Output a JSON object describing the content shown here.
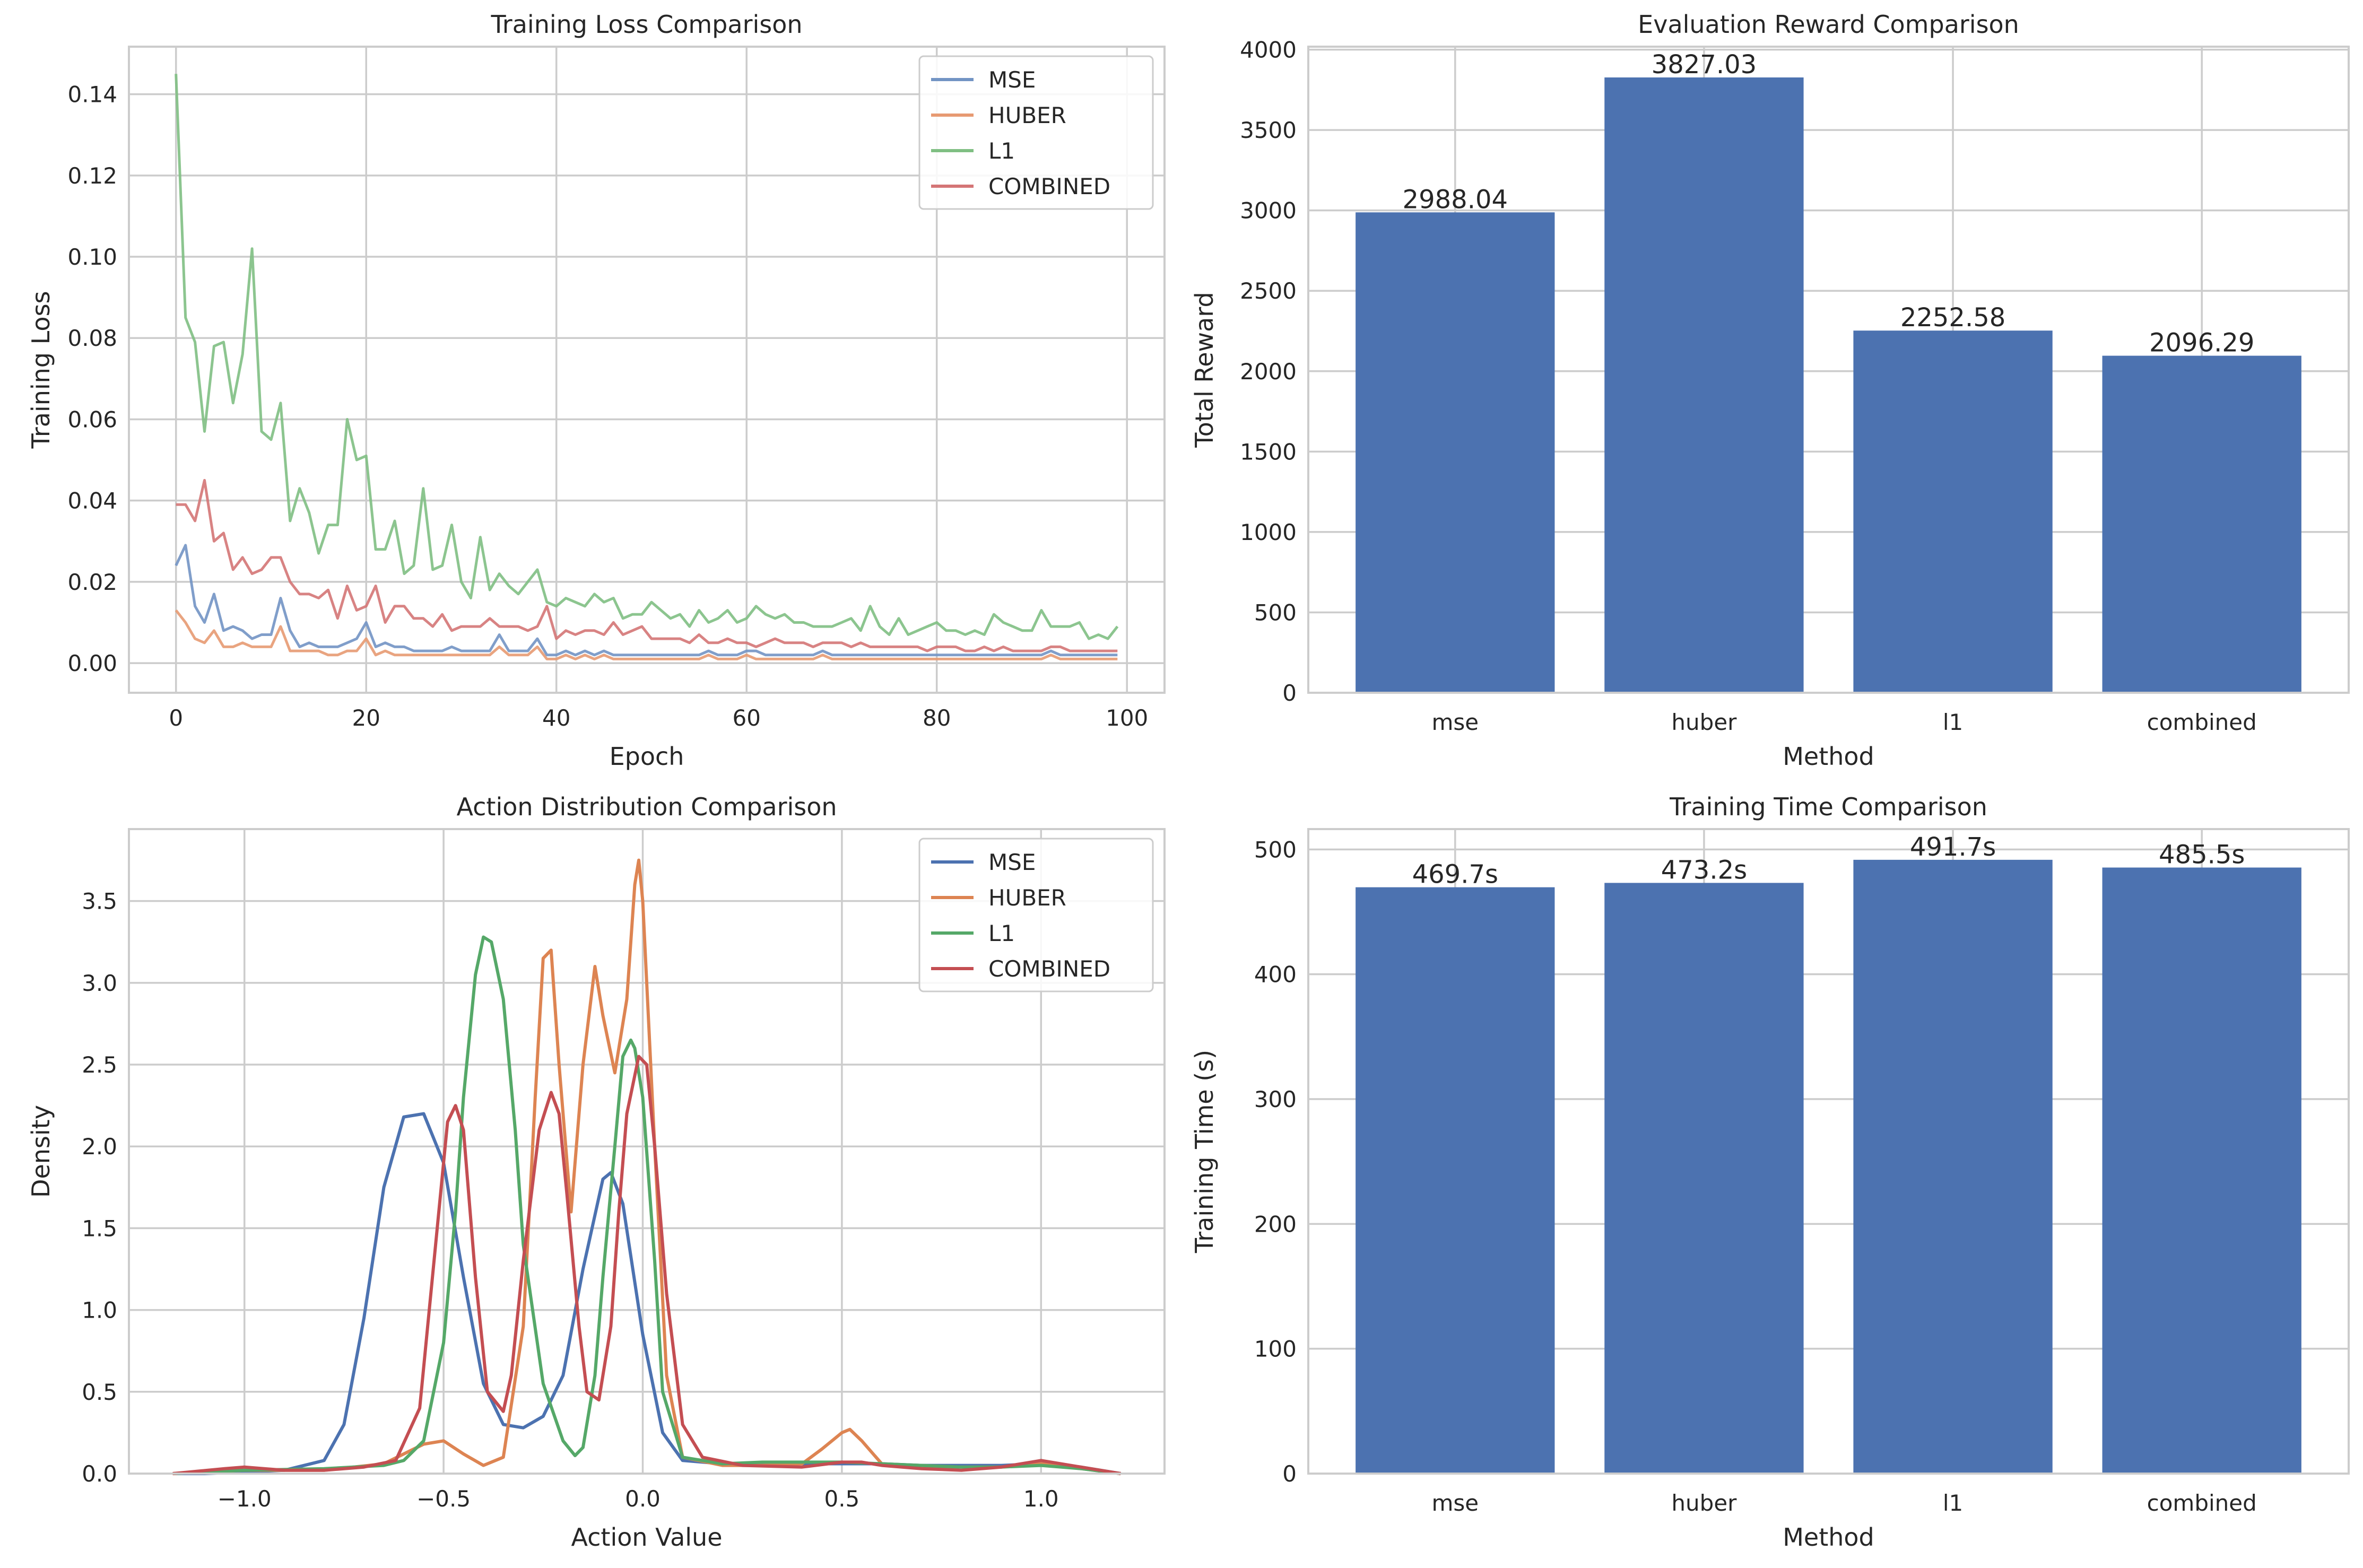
{
  "chart_data": [
    {
      "type": "line",
      "title": "Training Loss Comparison",
      "xlabel": "Epoch",
      "ylabel": "Training Loss",
      "xlim": [
        -4.95,
        103.95
      ],
      "ylim": [
        -0.0073,
        0.1517
      ],
      "xticks": [
        0,
        20,
        40,
        60,
        80,
        100
      ],
      "yticks": [
        0.0,
        0.02,
        0.04,
        0.06,
        0.08,
        0.1,
        0.12,
        0.14
      ],
      "ytick_labels": [
        "0.00",
        "0.02",
        "0.04",
        "0.06",
        "0.08",
        "0.10",
        "0.12",
        "0.14"
      ],
      "legend_position": "top-right",
      "series": [
        {
          "name": "MSE",
          "color": "#7294c4",
          "values": [
            0.024,
            0.029,
            0.014,
            0.01,
            0.017,
            0.008,
            0.009,
            0.008,
            0.006,
            0.007,
            0.007,
            0.016,
            0.008,
            0.004,
            0.005,
            0.004,
            0.004,
            0.004,
            0.005,
            0.006,
            0.01,
            0.004,
            0.005,
            0.004,
            0.004,
            0.003,
            0.003,
            0.003,
            0.003,
            0.004,
            0.003,
            0.003,
            0.003,
            0.003,
            0.007,
            0.003,
            0.003,
            0.003,
            0.006,
            0.002,
            0.002,
            0.003,
            0.002,
            0.003,
            0.002,
            0.003,
            0.002,
            0.002,
            0.002,
            0.002,
            0.002,
            0.002,
            0.002,
            0.002,
            0.002,
            0.002,
            0.003,
            0.002,
            0.002,
            0.002,
            0.003,
            0.003,
            0.002,
            0.002,
            0.002,
            0.002,
            0.002,
            0.002,
            0.003,
            0.002,
            0.002,
            0.002,
            0.002,
            0.002,
            0.002,
            0.002,
            0.002,
            0.002,
            0.002,
            0.002,
            0.002,
            0.002,
            0.002,
            0.002,
            0.002,
            0.002,
            0.002,
            0.002,
            0.002,
            0.002,
            0.002,
            0.002,
            0.003,
            0.002,
            0.002,
            0.002,
            0.002,
            0.002,
            0.002,
            0.002
          ]
        },
        {
          "name": "HUBER",
          "color": "#e79a72",
          "values": [
            0.013,
            0.01,
            0.006,
            0.005,
            0.008,
            0.004,
            0.004,
            0.005,
            0.004,
            0.004,
            0.004,
            0.009,
            0.003,
            0.003,
            0.003,
            0.003,
            0.002,
            0.002,
            0.003,
            0.003,
            0.006,
            0.002,
            0.003,
            0.002,
            0.002,
            0.002,
            0.002,
            0.002,
            0.002,
            0.002,
            0.002,
            0.002,
            0.002,
            0.002,
            0.004,
            0.002,
            0.002,
            0.002,
            0.004,
            0.001,
            0.001,
            0.002,
            0.001,
            0.002,
            0.001,
            0.002,
            0.001,
            0.001,
            0.001,
            0.001,
            0.001,
            0.001,
            0.001,
            0.001,
            0.001,
            0.001,
            0.002,
            0.001,
            0.001,
            0.001,
            0.002,
            0.001,
            0.001,
            0.001,
            0.001,
            0.001,
            0.001,
            0.001,
            0.002,
            0.001,
            0.001,
            0.001,
            0.001,
            0.001,
            0.001,
            0.001,
            0.001,
            0.001,
            0.001,
            0.001,
            0.001,
            0.001,
            0.001,
            0.001,
            0.001,
            0.001,
            0.001,
            0.001,
            0.001,
            0.001,
            0.001,
            0.001,
            0.002,
            0.001,
            0.001,
            0.001,
            0.001,
            0.001,
            0.001,
            0.001
          ]
        },
        {
          "name": "L1",
          "color": "#7fbf83",
          "values": [
            0.145,
            0.085,
            0.079,
            0.057,
            0.078,
            0.079,
            0.064,
            0.076,
            0.102,
            0.057,
            0.055,
            0.064,
            0.035,
            0.043,
            0.037,
            0.027,
            0.034,
            0.034,
            0.06,
            0.05,
            0.051,
            0.028,
            0.028,
            0.035,
            0.022,
            0.024,
            0.043,
            0.023,
            0.024,
            0.034,
            0.02,
            0.016,
            0.031,
            0.018,
            0.022,
            0.019,
            0.017,
            0.02,
            0.023,
            0.015,
            0.014,
            0.016,
            0.015,
            0.014,
            0.017,
            0.015,
            0.016,
            0.011,
            0.012,
            0.012,
            0.015,
            0.013,
            0.011,
            0.012,
            0.009,
            0.013,
            0.01,
            0.011,
            0.013,
            0.01,
            0.011,
            0.014,
            0.012,
            0.011,
            0.012,
            0.01,
            0.01,
            0.009,
            0.009,
            0.009,
            0.01,
            0.011,
            0.008,
            0.014,
            0.009,
            0.007,
            0.011,
            0.007,
            0.008,
            0.009,
            0.01,
            0.008,
            0.008,
            0.007,
            0.008,
            0.007,
            0.012,
            0.01,
            0.009,
            0.008,
            0.008,
            0.013,
            0.009,
            0.009,
            0.009,
            0.01,
            0.006,
            0.007,
            0.006,
            0.009
          ]
        },
        {
          "name": "COMBINED",
          "color": "#d47576",
          "values": [
            0.039,
            0.039,
            0.035,
            0.045,
            0.03,
            0.032,
            0.023,
            0.026,
            0.022,
            0.023,
            0.026,
            0.026,
            0.02,
            0.017,
            0.017,
            0.016,
            0.018,
            0.011,
            0.019,
            0.013,
            0.014,
            0.019,
            0.01,
            0.014,
            0.014,
            0.011,
            0.011,
            0.009,
            0.012,
            0.008,
            0.009,
            0.009,
            0.009,
            0.011,
            0.009,
            0.009,
            0.009,
            0.008,
            0.009,
            0.014,
            0.006,
            0.008,
            0.007,
            0.008,
            0.008,
            0.007,
            0.01,
            0.007,
            0.008,
            0.009,
            0.006,
            0.006,
            0.006,
            0.006,
            0.005,
            0.007,
            0.005,
            0.005,
            0.006,
            0.005,
            0.005,
            0.004,
            0.005,
            0.006,
            0.005,
            0.005,
            0.005,
            0.004,
            0.005,
            0.005,
            0.005,
            0.004,
            0.005,
            0.004,
            0.004,
            0.004,
            0.004,
            0.004,
            0.004,
            0.003,
            0.004,
            0.004,
            0.004,
            0.003,
            0.003,
            0.004,
            0.003,
            0.004,
            0.003,
            0.003,
            0.003,
            0.003,
            0.004,
            0.004,
            0.003,
            0.003,
            0.003,
            0.003,
            0.003,
            0.003
          ]
        }
      ]
    },
    {
      "type": "bar",
      "title": "Evaluation Reward Comparison",
      "xlabel": "Method",
      "ylabel": "Total Reward",
      "categories": [
        "mse",
        "huber",
        "l1",
        "combined"
      ],
      "values": [
        2988.04,
        3827.03,
        2252.58,
        2096.29
      ],
      "data_labels": [
        "2988.04",
        "3827.03",
        "2252.58",
        "2096.29"
      ],
      "ylim": [
        0,
        4018.4
      ],
      "yticks": [
        0,
        500,
        1000,
        1500,
        2000,
        2500,
        3000,
        3500,
        4000
      ],
      "ytick_labels": [
        "0",
        "500",
        "1000",
        "1500",
        "2000",
        "2500",
        "3000",
        "3500",
        "4000"
      ],
      "bar_color": "#4c72b0"
    },
    {
      "type": "line",
      "title": "Action Distribution Comparison",
      "xlabel": "Action Value",
      "ylabel": "Density",
      "xlim": [
        -1.29,
        1.31
      ],
      "ylim": [
        0,
        3.94
      ],
      "xticks": [
        -1.0,
        -0.5,
        0.0,
        0.5,
        1.0
      ],
      "xtick_labels": [
        "−1.0",
        "−0.5",
        "0.0",
        "0.5",
        "1.0"
      ],
      "yticks": [
        0.0,
        0.5,
        1.0,
        1.5,
        2.0,
        2.5,
        3.0,
        3.5
      ],
      "ytick_labels": [
        "0.0",
        "0.5",
        "1.0",
        "1.5",
        "2.0",
        "2.5",
        "3.0",
        "3.5"
      ],
      "legend_position": "top-right",
      "series": [
        {
          "name": "MSE",
          "color": "#4c72b0",
          "x": [
            -1.18,
            -1.1,
            -1.0,
            -0.9,
            -0.8,
            -0.75,
            -0.7,
            -0.65,
            -0.6,
            -0.55,
            -0.5,
            -0.45,
            -0.4,
            -0.35,
            -0.3,
            -0.25,
            -0.2,
            -0.15,
            -0.1,
            -0.08,
            -0.05,
            0.0,
            0.05,
            0.1,
            0.2,
            0.3,
            0.4,
            0.5,
            0.6,
            0.7,
            0.8,
            0.9,
            1.0,
            1.1,
            1.2
          ],
          "values": [
            0.0,
            0.0,
            0.01,
            0.02,
            0.08,
            0.3,
            0.95,
            1.75,
            2.18,
            2.2,
            1.9,
            1.2,
            0.55,
            0.3,
            0.28,
            0.35,
            0.6,
            1.25,
            1.8,
            1.84,
            1.65,
            0.85,
            0.25,
            0.08,
            0.06,
            0.06,
            0.06,
            0.06,
            0.06,
            0.05,
            0.05,
            0.05,
            0.06,
            0.04,
            0.0
          ]
        },
        {
          "name": "HUBER",
          "color": "#dd8452",
          "x": [
            -1.18,
            -1.0,
            -0.8,
            -0.65,
            -0.6,
            -0.55,
            -0.5,
            -0.45,
            -0.4,
            -0.35,
            -0.3,
            -0.27,
            -0.25,
            -0.23,
            -0.21,
            -0.18,
            -0.15,
            -0.12,
            -0.1,
            -0.07,
            -0.04,
            -0.02,
            -0.01,
            0.0,
            0.03,
            0.06,
            0.1,
            0.2,
            0.3,
            0.4,
            0.45,
            0.5,
            0.52,
            0.55,
            0.6,
            0.7,
            0.8,
            0.9,
            1.0,
            1.1,
            1.2
          ],
          "values": [
            0.0,
            0.02,
            0.02,
            0.06,
            0.12,
            0.18,
            0.2,
            0.12,
            0.05,
            0.1,
            0.9,
            2.3,
            3.15,
            3.2,
            2.5,
            1.6,
            2.5,
            3.1,
            2.8,
            2.45,
            2.9,
            3.6,
            3.75,
            3.5,
            2.0,
            0.6,
            0.1,
            0.05,
            0.05,
            0.06,
            0.15,
            0.25,
            0.27,
            0.2,
            0.06,
            0.04,
            0.04,
            0.04,
            0.06,
            0.03,
            0.0
          ]
        },
        {
          "name": "L1",
          "color": "#55a868",
          "x": [
            -1.18,
            -1.0,
            -0.8,
            -0.65,
            -0.6,
            -0.55,
            -0.5,
            -0.47,
            -0.45,
            -0.42,
            -0.4,
            -0.38,
            -0.35,
            -0.32,
            -0.3,
            -0.25,
            -0.2,
            -0.17,
            -0.15,
            -0.12,
            -0.1,
            -0.07,
            -0.05,
            -0.03,
            -0.02,
            0.0,
            0.03,
            0.05,
            0.1,
            0.2,
            0.3,
            0.4,
            0.5,
            0.6,
            0.7,
            0.8,
            0.9,
            1.0,
            1.1,
            1.2
          ],
          "values": [
            0.0,
            0.02,
            0.03,
            0.05,
            0.08,
            0.2,
            0.8,
            1.6,
            2.3,
            3.05,
            3.28,
            3.25,
            2.9,
            2.1,
            1.4,
            0.55,
            0.2,
            0.11,
            0.16,
            0.6,
            1.2,
            2.0,
            2.55,
            2.65,
            2.6,
            2.3,
            1.3,
            0.5,
            0.1,
            0.06,
            0.07,
            0.07,
            0.07,
            0.06,
            0.05,
            0.04,
            0.04,
            0.05,
            0.03,
            0.0
          ]
        },
        {
          "name": "COMBINED",
          "color": "#c44e52",
          "x": [
            -1.18,
            -1.05,
            -1.0,
            -0.9,
            -0.8,
            -0.7,
            -0.62,
            -0.56,
            -0.52,
            -0.49,
            -0.47,
            -0.45,
            -0.42,
            -0.39,
            -0.35,
            -0.33,
            -0.3,
            -0.26,
            -0.23,
            -0.21,
            -0.19,
            -0.16,
            -0.14,
            -0.11,
            -0.08,
            -0.06,
            -0.04,
            -0.01,
            0.01,
            0.03,
            0.06,
            0.1,
            0.15,
            0.25,
            0.4,
            0.5,
            0.55,
            0.6,
            0.7,
            0.8,
            0.9,
            1.0,
            1.1,
            1.2
          ],
          "values": [
            0.0,
            0.03,
            0.04,
            0.02,
            0.02,
            0.04,
            0.08,
            0.4,
            1.4,
            2.15,
            2.25,
            2.1,
            1.2,
            0.5,
            0.38,
            0.6,
            1.3,
            2.1,
            2.33,
            2.2,
            1.7,
            0.9,
            0.5,
            0.45,
            0.9,
            1.6,
            2.2,
            2.55,
            2.5,
            2.0,
            1.1,
            0.3,
            0.1,
            0.05,
            0.04,
            0.07,
            0.07,
            0.05,
            0.03,
            0.02,
            0.04,
            0.08,
            0.04,
            0.0
          ]
        }
      ]
    },
    {
      "type": "bar",
      "title": "Training Time Comparison",
      "xlabel": "Method",
      "ylabel": "Training Time (s)",
      "categories": [
        "mse",
        "huber",
        "l1",
        "combined"
      ],
      "values": [
        469.7,
        473.2,
        491.7,
        485.5
      ],
      "data_labels": [
        "469.7s",
        "473.2s",
        "491.7s",
        "485.5s"
      ],
      "ylim": [
        0,
        516.3
      ],
      "yticks": [
        0,
        100,
        200,
        300,
        400,
        500
      ],
      "ytick_labels": [
        "0",
        "100",
        "200",
        "300",
        "400",
        "500"
      ],
      "bar_color": "#4c72b0"
    }
  ]
}
